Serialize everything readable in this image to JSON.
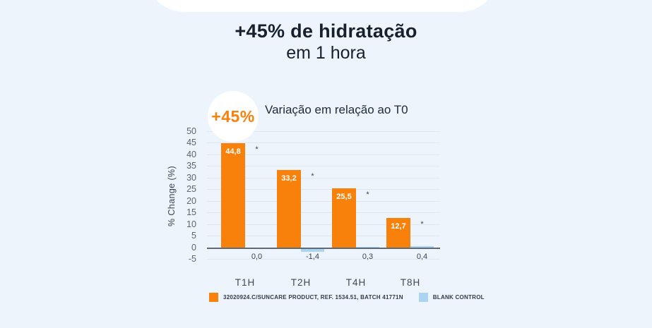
{
  "page": {
    "background": "#edf4fb",
    "title_line1": "+45% de hidratação",
    "title_line2": "em 1 hora",
    "badge_value": "+45%"
  },
  "colors": {
    "product_orange": "#f8810c",
    "control_blue": "#aad4f2",
    "title_navy": "#16212d",
    "axis_line": "#5e6a75",
    "gridline": "#dfe8f0"
  },
  "chart_data": {
    "type": "bar",
    "title": "Variação em relação ao T0",
    "ylabel": "% Change (%)",
    "ylim": [
      -5,
      50
    ],
    "ytick_step": 5,
    "grid": true,
    "legend_position": "bottom",
    "categories": [
      "T1H",
      "T2H",
      "T4H",
      "T8H"
    ],
    "series": [
      {
        "name": "32020924.C/SUNCARE PRODUCT, REF. 1534.51, BATCH 41771N",
        "color": "#f8810c",
        "values": [
          44.8,
          33.2,
          25.5,
          12.7
        ],
        "labels": [
          "44,8",
          "33,2",
          "25,5",
          "12,7"
        ],
        "significant": [
          true,
          true,
          true,
          true
        ]
      },
      {
        "name": "BLANK CONTROL",
        "color": "#aad4f2",
        "values": [
          0.0,
          -1.4,
          0.3,
          0.4
        ],
        "labels": [
          "0,0",
          "-1,4",
          "0,3",
          "0,4"
        ],
        "significant": [
          false,
          false,
          false,
          false
        ]
      }
    ],
    "significance_marker": "*"
  }
}
